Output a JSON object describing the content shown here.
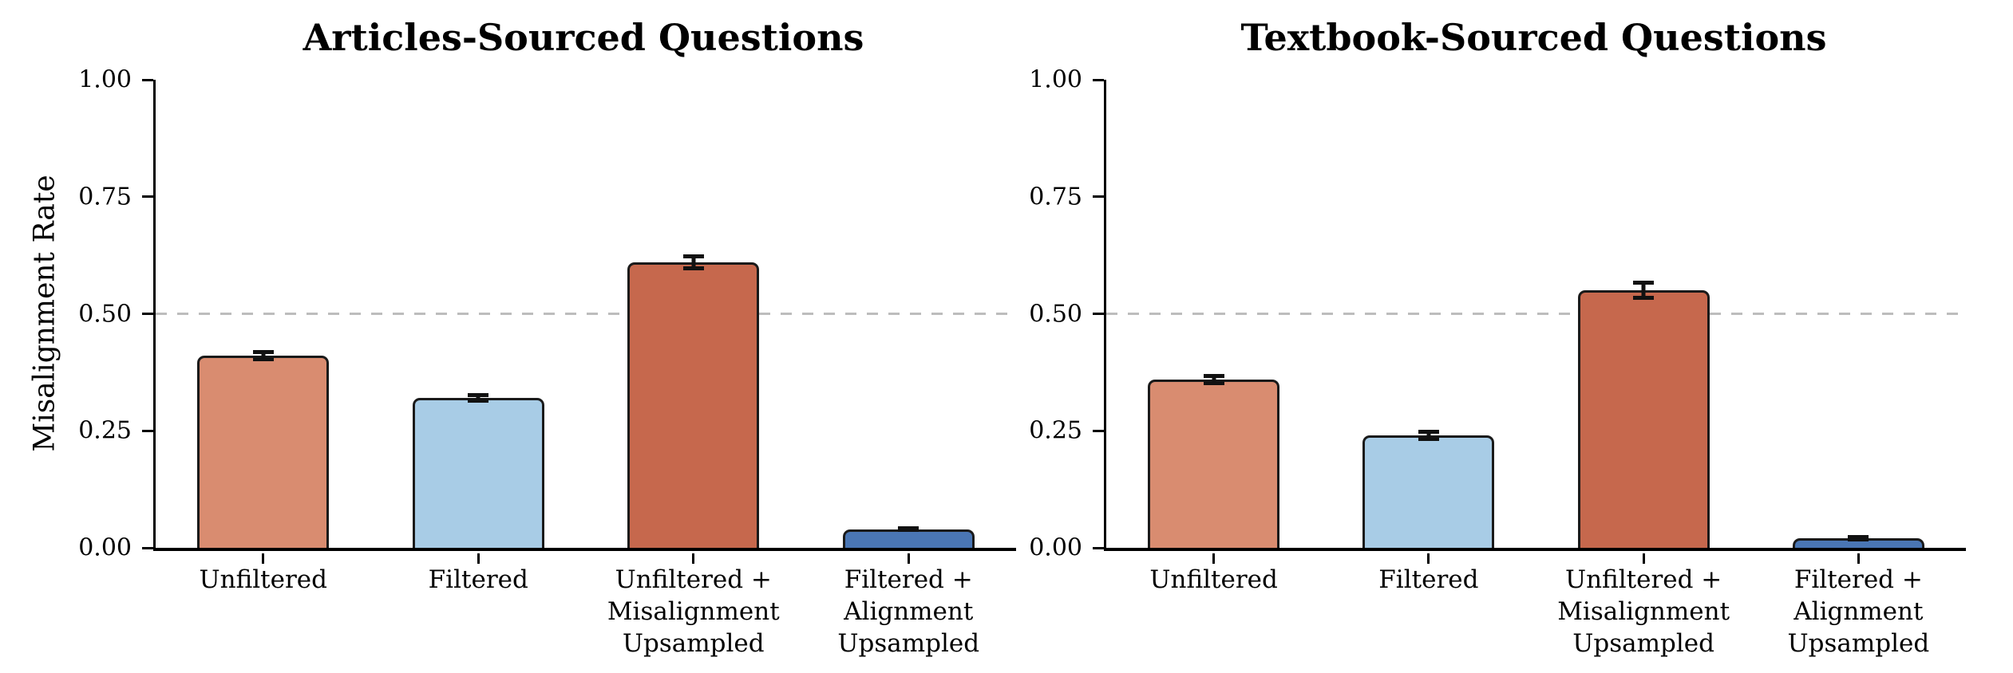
{
  "figure": {
    "background": "#ffffff"
  },
  "colors": {
    "bar_edge": "#1a1a1a",
    "error_bar": "#111111",
    "reference_line": "#bdbdbd",
    "axis": "#000000",
    "text": "#111111"
  },
  "chart_data": [
    {
      "type": "bar",
      "title": "Articles-Sourced Questions",
      "xlabel": "",
      "ylabel": "Misalignment Rate",
      "categories": [
        "Unfiltered",
        "Filtered",
        "Unfiltered +\nMisalignment\nUpsampled",
        "Filtered +\nAlignment\nUpsampled"
      ],
      "values": [
        0.41,
        0.32,
        0.61,
        0.04
      ],
      "errors": [
        0.012,
        0.01,
        0.017,
        0.006
      ],
      "bar_colors": [
        "#D98C70",
        "#A8CCE6",
        "#C6684D",
        "#4A76B4"
      ],
      "ylim": [
        0,
        1
      ],
      "yticks": [
        "0.00",
        "0.25",
        "0.50",
        "0.75",
        "1.00"
      ],
      "reference_line": 0.5,
      "grid": false,
      "legend": null
    },
    {
      "type": "bar",
      "title": "Textbook-Sourced Questions",
      "xlabel": "",
      "ylabel": "",
      "categories": [
        "Unfiltered",
        "Filtered",
        "Unfiltered +\nMisalignment\nUpsampled",
        "Filtered +\nAlignment\nUpsampled"
      ],
      "values": [
        0.36,
        0.24,
        0.55,
        0.02
      ],
      "errors": [
        0.012,
        0.012,
        0.02,
        0.007
      ],
      "bar_colors": [
        "#D98C70",
        "#A8CCE6",
        "#C6684D",
        "#4A76B4"
      ],
      "ylim": [
        0,
        1
      ],
      "yticks": [
        "0.00",
        "0.25",
        "0.50",
        "0.75",
        "1.00"
      ],
      "reference_line": 0.5,
      "grid": false,
      "legend": null
    }
  ]
}
